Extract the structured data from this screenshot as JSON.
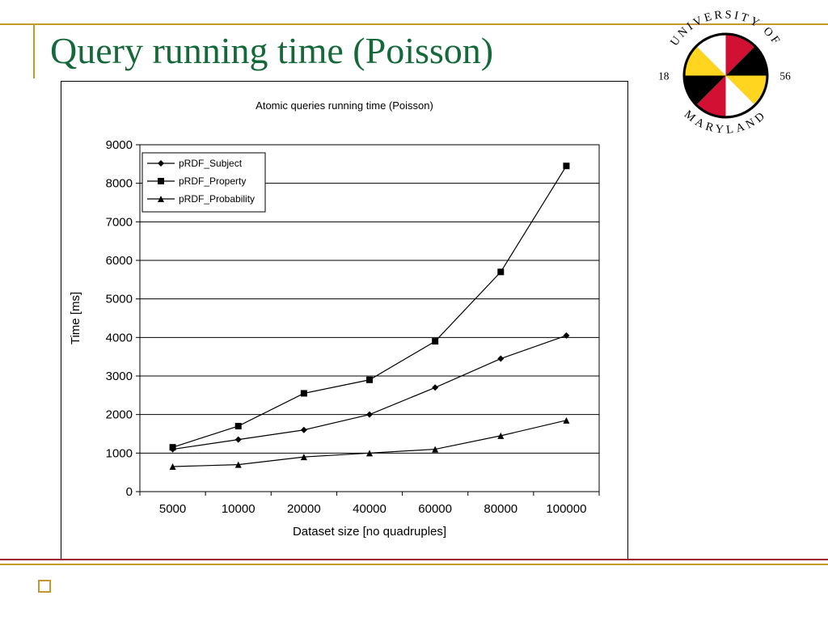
{
  "slide": {
    "title": "Query running time (Poisson)"
  },
  "logo": {
    "arc_top": "UNIVERSITY OF",
    "arc_bottom": "MARYLAND",
    "year_left": "18",
    "year_right": "56"
  },
  "colors": {
    "title_green": "#156839",
    "gold": "#c3992f",
    "maroon": "#9e1b32",
    "logo_red": "#d21034",
    "logo_gold": "#ffd520"
  },
  "chart_data": {
    "type": "line",
    "title": "Atomic queries running time (Poisson)",
    "xlabel": "Dataset size [no quadruples]",
    "ylabel": "Time [ms]",
    "categories": [
      "5000",
      "10000",
      "20000",
      "40000",
      "60000",
      "80000",
      "100000"
    ],
    "ylim": [
      0,
      9000
    ],
    "ytick_step": 1000,
    "grid": true,
    "legend_position": "top-left",
    "line_color": "#000000",
    "series": [
      {
        "name": "pRDF_Subject",
        "marker": "diamond",
        "values": [
          1100,
          1350,
          1600,
          2000,
          2700,
          3450,
          4050
        ]
      },
      {
        "name": "pRDF_Property",
        "marker": "square",
        "values": [
          1150,
          1700,
          2550,
          2900,
          3900,
          5700,
          8450
        ]
      },
      {
        "name": "pRDF_Probability",
        "marker": "triangle",
        "values": [
          650,
          700,
          900,
          1000,
          1100,
          1450,
          1850
        ]
      }
    ]
  }
}
